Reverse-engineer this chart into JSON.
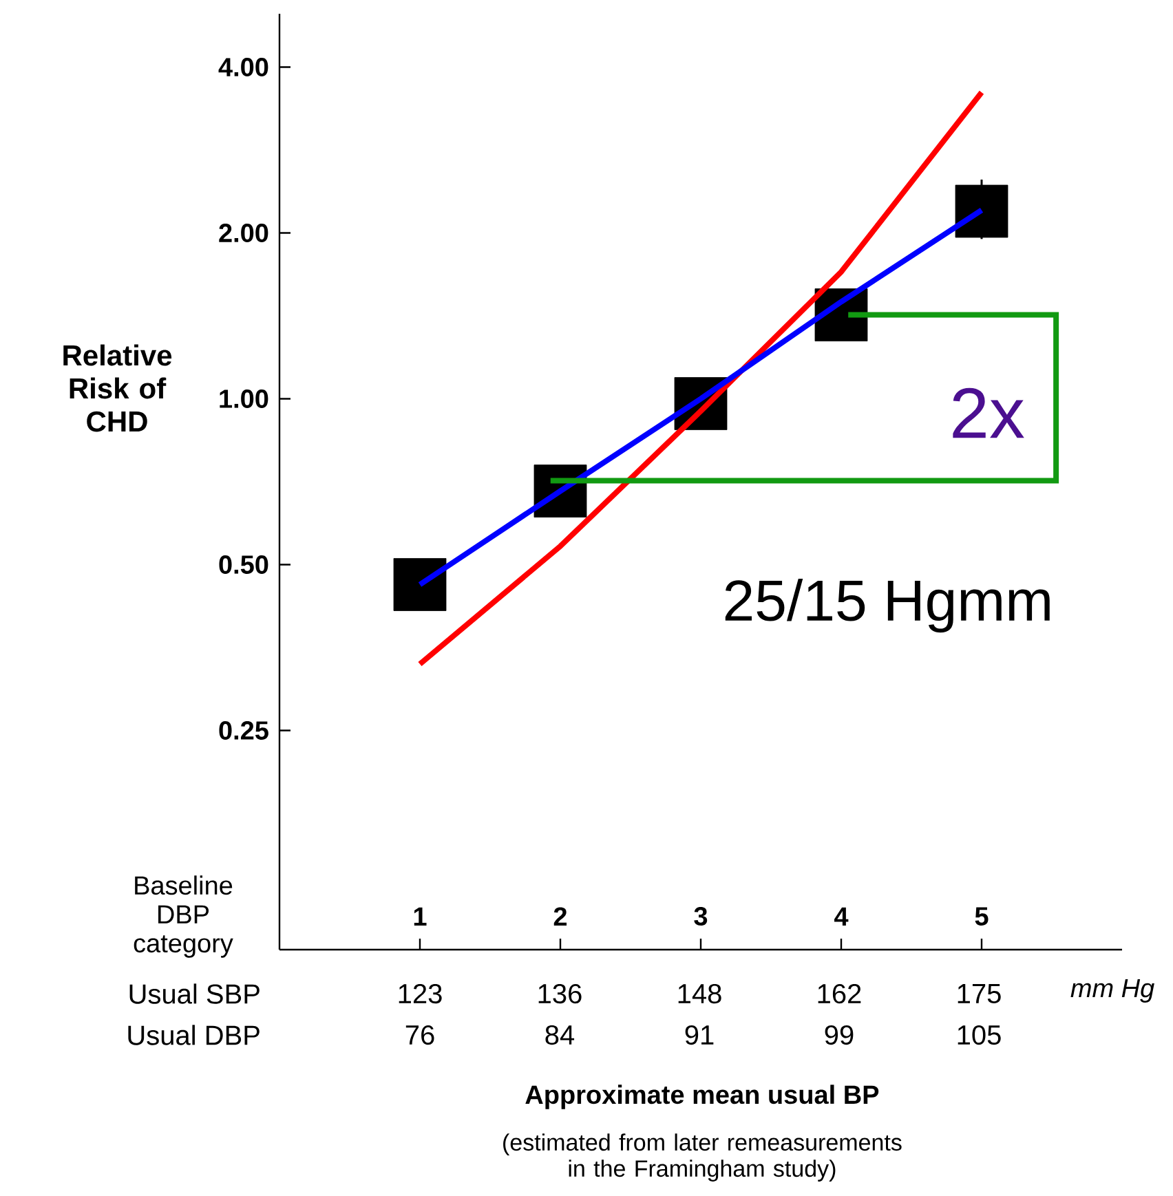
{
  "chart_data": {
    "type": "scatter",
    "ylabel": "Relative Risk of CHD",
    "categories": [
      "1",
      "2",
      "3",
      "4",
      "5"
    ],
    "log": "y",
    "ylim": [
      0.1,
      5
    ],
    "yticks": [
      {
        "value": 0.25,
        "label": "0.25"
      },
      {
        "value": 0.5,
        "label": "0.50"
      },
      {
        "value": 1,
        "label": "1.00"
      },
      {
        "value": 2,
        "label": "2.00"
      },
      {
        "value": 4,
        "label": "4.00"
      }
    ],
    "series": [
      {
        "marker": "square",
        "color": "#000000",
        "values": [
          0.46,
          0.68,
          0.98,
          1.42,
          2.19
        ],
        "errors": [
          null,
          null,
          null,
          null,
          [
            1.95,
            2.5
          ]
        ]
      },
      {
        "type": "line",
        "color": "#ff0000",
        "values": [
          0.33,
          0.54,
          0.95,
          1.7,
          3.6
        ]
      },
      {
        "type": "line",
        "color": "#0000ff",
        "values": [
          0.46,
          0.68,
          1.0,
          1.5,
          2.2
        ]
      }
    ],
    "annotations": [
      "2x",
      "25/15 Hgmm",
      "Baseline DBP category",
      "Usual SBP",
      "Usual DBP",
      "mm Hg",
      "Approximate mean usual BP",
      "(estimated from later remeasurements in the Framingham study)",
      "123",
      "136",
      "148",
      "162",
      "175",
      "76",
      "84",
      "91",
      "99",
      "105"
    ]
  }
}
